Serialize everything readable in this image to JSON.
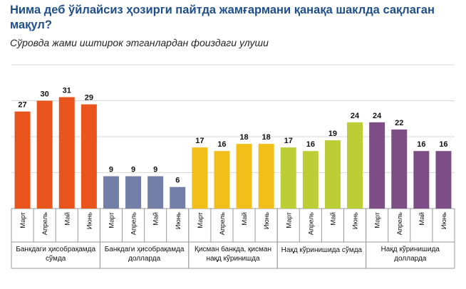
{
  "chart_data": {
    "type": "bar",
    "title": "Нима деб ўйлайсиз ҳозирги пайтда жамғармани қанақа шаклда сақлаган мақул?",
    "subtitle": "Сўровда жами иштирок этганлардан фоиздаги улуши",
    "ylim": [
      0,
      40
    ],
    "grid": true,
    "groups": [
      {
        "label": [
          "Банкдаги ҳисобрақамда",
          "сўмда"
        ],
        "color": "#e8541b",
        "categories": [
          "Март",
          "Апрель",
          "Май",
          "Июнь"
        ],
        "values": [
          27,
          30,
          31,
          29
        ]
      },
      {
        "label": [
          "Банкдаги ҳисобрақамда",
          "долларда"
        ],
        "color": "#737fa8",
        "categories": [
          "Март",
          "Апрель",
          "Май",
          "Июнь"
        ],
        "values": [
          9,
          9,
          9,
          6
        ]
      },
      {
        "label": [
          "Қисман банкда, қисман",
          "нақд кўринишда"
        ],
        "color": "#f2be1a",
        "categories": [
          "Март",
          "Апрель",
          "Май",
          "Июнь"
        ],
        "values": [
          17,
          16,
          18,
          18
        ]
      },
      {
        "label": [
          "Нақд кўринишида сўмда"
        ],
        "color": "#bccd35",
        "categories": [
          "Март",
          "Апрель",
          "Май",
          "Июнь"
        ],
        "values": [
          17,
          16,
          19,
          24
        ]
      },
      {
        "label": [
          "Нақд кўринишида",
          "долларда"
        ],
        "color": "#7d4e85",
        "categories": [
          "Март",
          "Апрель",
          "Май",
          "Июнь"
        ],
        "values": [
          24,
          22,
          16,
          16
        ]
      }
    ]
  }
}
